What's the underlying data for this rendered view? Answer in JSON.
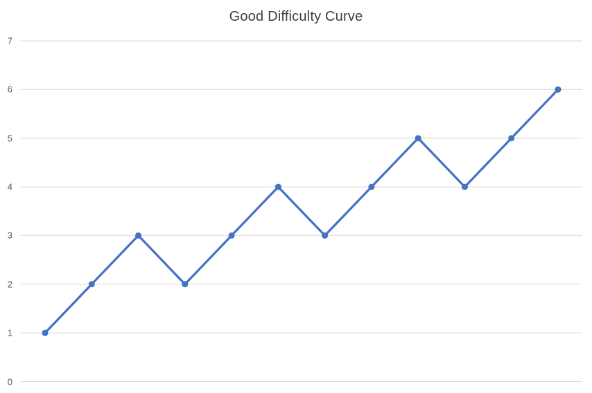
{
  "chart_data": {
    "type": "line",
    "title": "Good Difficulty Curve",
    "values": [
      1,
      2,
      3,
      2,
      3,
      4,
      3,
      4,
      5,
      4,
      5,
      6
    ],
    "xlabel": "",
    "ylabel": "",
    "ylim": [
      0,
      7
    ],
    "yticks": [
      0,
      1,
      2,
      3,
      4,
      5,
      6,
      7
    ],
    "x_tick_labels_visible": false,
    "grid": "horizontal",
    "legend": "none",
    "marker": "circle",
    "line_color": "#4472C4",
    "gridline_color": "#D9D9D9",
    "tick_label_color": "#595959",
    "title_color": "#404040",
    "background_color": "#FFFFFF"
  }
}
